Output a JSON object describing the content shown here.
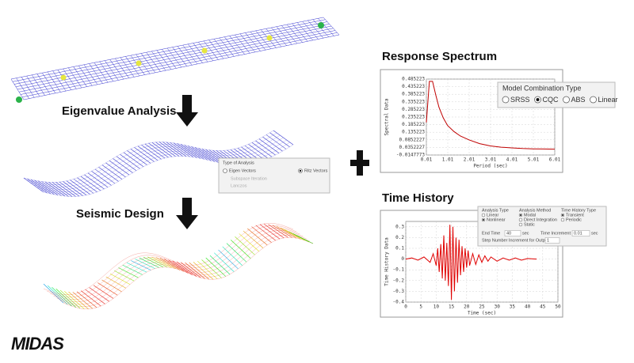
{
  "steps": [
    {
      "label": "Eigenvalue Analysis"
    },
    {
      "label": "Seismic Design"
    }
  ],
  "eigen_panel": {
    "title": "Type of Analysis",
    "options": [
      "Eigen Vectors",
      "Ritz Vectors",
      "Subspace Iteration",
      "Lanczos"
    ]
  },
  "response_spectrum": {
    "title": "Response Spectrum",
    "chart_data": {
      "type": "line",
      "xlabel": "Period (sec)",
      "ylabel": "Spectral Data",
      "color": "#c00000",
      "x": [
        0.01,
        0.15,
        0.3,
        0.45,
        0.6,
        0.8,
        1.0,
        1.3,
        1.6,
        2.0,
        2.5,
        3.0,
        3.5,
        4.0,
        4.5,
        5.0,
        5.5,
        6.01
      ],
      "values": [
        0.2,
        0.47,
        0.47,
        0.38,
        0.3,
        0.23,
        0.18,
        0.14,
        0.11,
        0.085,
        0.06,
        0.045,
        0.037,
        0.032,
        0.028,
        0.026,
        0.025,
        0.024
      ],
      "xlim": [
        0.01,
        6.01
      ],
      "ylim": [
        -0.0147773,
        0.485223
      ],
      "xticks": [
        0.01,
        1.01,
        2.01,
        3.01,
        4.01,
        5.01,
        6.01
      ],
      "yticks": [
        0.485223,
        0.435223,
        0.385223,
        0.335223,
        0.285223,
        0.235223,
        0.185223,
        0.135223,
        0.0852227,
        0.0352227,
        -0.0147773
      ],
      "grid": true
    },
    "panel": {
      "title": "Model Combination Type",
      "options": [
        "SRSS",
        "CQC",
        "ABS",
        "Linear"
      ]
    }
  },
  "time_history": {
    "title": "Time History",
    "chart_data": {
      "type": "line",
      "xlabel": "Time (sec)",
      "ylabel": "Time History Data",
      "color": "#e00000",
      "x": [
        0,
        2,
        4,
        6,
        8,
        9,
        10,
        10.5,
        11,
        11.5,
        12,
        12.5,
        13,
        13.5,
        14,
        14.5,
        15,
        15.5,
        16,
        16.5,
        17,
        17.5,
        18,
        18.5,
        19,
        19.5,
        20,
        20.5,
        21,
        22,
        23,
        24,
        25,
        26,
        27,
        28,
        30,
        32,
        34,
        36,
        38,
        40,
        43
      ],
      "values": [
        0,
        0.01,
        -0.01,
        0.02,
        -0.03,
        0.05,
        -0.06,
        0.1,
        -0.12,
        0.14,
        -0.18,
        0.22,
        -0.2,
        0.15,
        -0.25,
        0.32,
        -0.38,
        0.3,
        -0.3,
        0.2,
        -0.22,
        0.18,
        -0.15,
        0.12,
        -0.12,
        0.1,
        -0.08,
        0.08,
        -0.06,
        0.05,
        -0.05,
        0.04,
        -0.03,
        0.03,
        -0.02,
        0.02,
        -0.02,
        0.01,
        -0.01,
        0.01,
        -0.01,
        0.005,
        0
      ],
      "xlim": [
        0,
        50
      ],
      "ylim": [
        -0.4,
        0.35
      ],
      "xticks": [
        0,
        5,
        10,
        15,
        20,
        25,
        30,
        35,
        40,
        45,
        50
      ],
      "yticks": [
        0.3,
        0.2,
        0.1,
        0,
        -0.1,
        -0.2,
        -0.3,
        -0.4
      ],
      "grid": true
    },
    "panel": {
      "groups": [
        {
          "title": "Analysis Type",
          "options": [
            "Linear",
            "Nonlinear"
          ]
        },
        {
          "title": "Analysis Method",
          "options": [
            "Modal",
            "Direct Integration",
            "Static"
          ]
        },
        {
          "title": "Time History Type",
          "options": [
            "Transient",
            "Periodic"
          ]
        }
      ],
      "end_time": {
        "label": "End Time",
        "value": 40,
        "unit": "sec"
      },
      "time_increment": {
        "label": "Time Increment",
        "value": 0.01,
        "unit": "sec"
      },
      "step_increment": {
        "label": "Step Number Increment for Output",
        "value": 1
      }
    }
  },
  "logo": "MIDAS"
}
